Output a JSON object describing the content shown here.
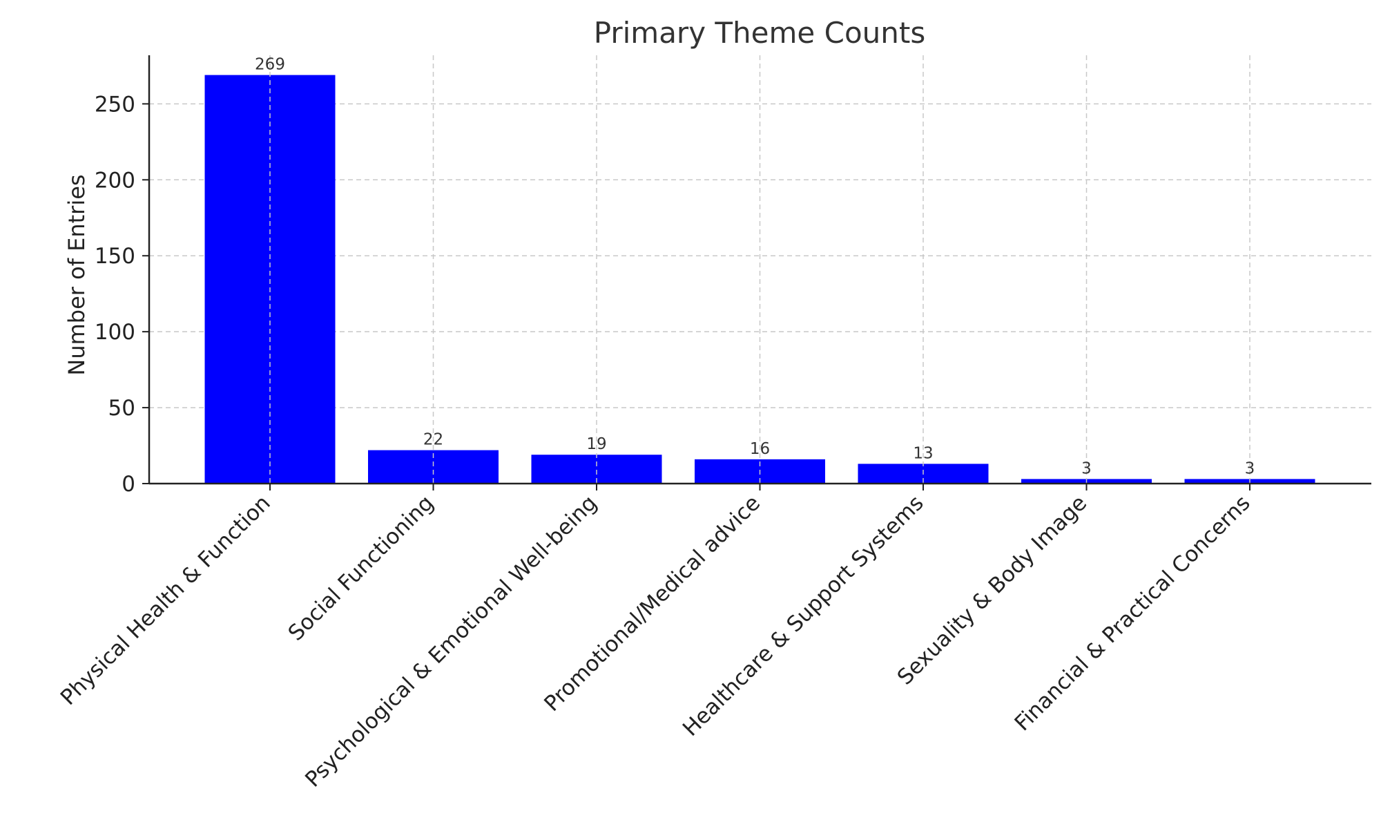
{
  "chart_data": {
    "type": "bar",
    "title": "Primary Theme Counts",
    "xlabel": "",
    "ylabel": "Number of Entries",
    "categories": [
      "Physical Health & Function",
      "Social Functioning",
      "Psychological & Emotional Well-being",
      "Promotional/Medical advice",
      "Healthcare & Support Systems",
      "Sexuality & Body Image",
      "Financial & Practical Concerns"
    ],
    "values": [
      269,
      22,
      19,
      16,
      13,
      3,
      3
    ],
    "ylim": [
      0,
      282
    ],
    "yticks": [
      0,
      50,
      100,
      150,
      200,
      250
    ],
    "bar_color": "#0000ff",
    "grid": true,
    "legend": "none"
  }
}
